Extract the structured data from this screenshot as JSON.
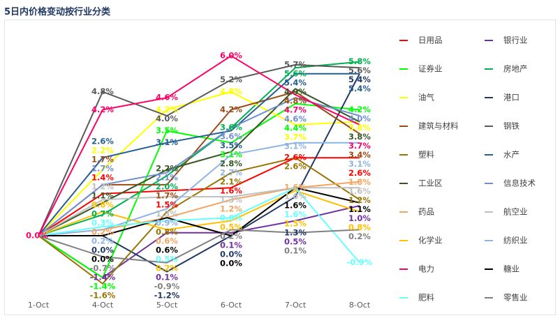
{
  "title": "5日内价格变动按行业分类",
  "chart_data": {
    "type": "line",
    "title": "5日内价格变动按行业分类",
    "categories": [
      "1-Oct",
      "4-Oct",
      "5-Oct",
      "6-Oct",
      "7-Oct",
      "8-Oct"
    ],
    "unit": "%",
    "grid": false,
    "legend": "right",
    "series": [
      {
        "name": "日用品",
        "color": "#FF0000",
        "values": [
          0,
          1.4,
          1.5,
          1.6,
          2.6,
          2.6
        ]
      },
      {
        "name": "银行业",
        "color": "#7030A0",
        "values": [
          0,
          -1.4,
          0.1,
          0.1,
          0.5,
          1.0
        ]
      },
      {
        "name": "证券业",
        "color": "#00FF00",
        "values": [
          0,
          -1.4,
          3.5,
          3.1,
          4.4,
          4.2
        ]
      },
      {
        "name": "房地产",
        "color": "#00B050",
        "values": [
          0,
          0.7,
          2.0,
          3.6,
          5.6,
          5.8
        ]
      },
      {
        "name": "油气",
        "color": "#FFFF00",
        "values": [
          0,
          2.2,
          4.2,
          4.8,
          3.7,
          3.8
        ]
      },
      {
        "name": "港口",
        "color": "#1F3864",
        "values": [
          0,
          0.0,
          -1.2,
          0.0,
          1.3,
          5.4
        ]
      },
      {
        "name": "建筑与材料",
        "color": "#9C4A13",
        "values": [
          0,
          1.7,
          1.7,
          4.2,
          4.8,
          3.4
        ]
      },
      {
        "name": "钢铁",
        "color": "#595959",
        "values": [
          0,
          4.8,
          4.0,
          5.2,
          5.7,
          5.6
        ]
      },
      {
        "name": "塑料",
        "color": "#997300",
        "values": [
          0,
          -1.6,
          0.8,
          2.1,
          2.6,
          1.2
        ]
      },
      {
        "name": "水产",
        "color": "#255E91",
        "values": [
          0,
          2.6,
          3.1,
          3.5,
          5.4,
          5.4
        ]
      },
      {
        "name": "工业区",
        "color": "#375623",
        "values": [
          0,
          1.1,
          2.2,
          2.8,
          4.9,
          3.8
        ]
      },
      {
        "name": "信息技术",
        "color": "#6F8FCF",
        "values": [
          0,
          1.7,
          2.1,
          3.6,
          4.6,
          4.0
        ]
      },
      {
        "name": "药品",
        "color": "#F4A460",
        "values": [
          0,
          0.2,
          0.6,
          1.2,
          1.6,
          1.8
        ]
      },
      {
        "name": "航空业",
        "color": "#BFBFBF",
        "values": [
          0,
          1.2,
          1.3,
          1.3,
          1.6,
          1.6
        ]
      },
      {
        "name": "化学业",
        "color": "#FFC000",
        "values": [
          0,
          0.8,
          0.2,
          0.5,
          1.5,
          0.8
        ]
      },
      {
        "name": "纺织业",
        "color": "#8EB4E3",
        "values": [
          0,
          0.2,
          0.9,
          2.7,
          3.1,
          3.1
        ]
      },
      {
        "name": "电力",
        "color": "#FF0066",
        "values": [
          0,
          4.2,
          4.6,
          6.0,
          4.7,
          3.7
        ]
      },
      {
        "name": "糖业",
        "color": "#000000",
        "values": [
          0,
          0.0,
          0.6,
          0.0,
          1.6,
          1.1
        ]
      },
      {
        "name": "肥料",
        "color": "#66FFFF",
        "values": [
          0,
          0.3,
          0.5,
          0.6,
          1.6,
          -0.9
        ]
      },
      {
        "name": "零售业",
        "color": "#808080",
        "values": [
          0,
          -0.7,
          -0.9,
          0.2,
          0.1,
          0.2
        ]
      }
    ]
  }
}
